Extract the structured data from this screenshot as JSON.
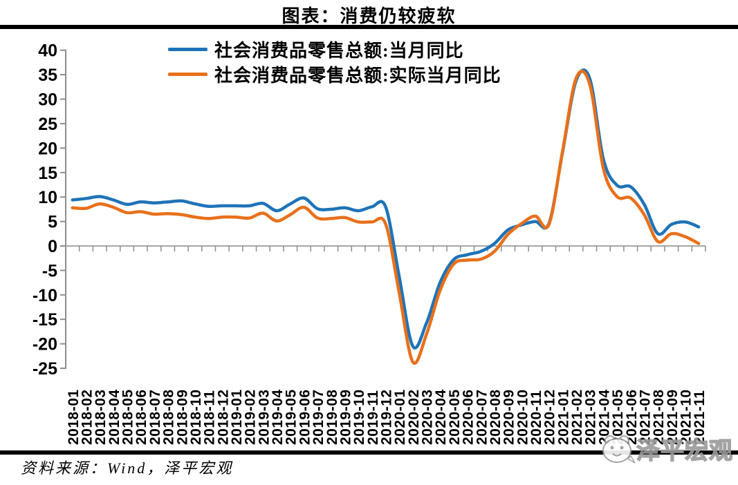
{
  "title": "图表：消费仍较疲软",
  "legend": [
    {
      "label": "社会消费品零售总额:当月同比",
      "color": "#1E73B8"
    },
    {
      "label": "社会消费品零售总额:实际当月同比",
      "color": "#E8701A"
    }
  ],
  "source_note": "资料来源：Wind，泽平宏观",
  "watermark_text": "泽平宏观",
  "colors": {
    "series_nominal": "#1E73B8",
    "series_real": "#E8701A",
    "axis": "#8C8C8C",
    "zero_line": "#A6A6A6",
    "rule": "#000000",
    "watermark": "#9A9A9A"
  },
  "chart_data": {
    "type": "line",
    "title": "图表：消费仍较疲软",
    "xlabel": "",
    "ylabel": "",
    "ylim": [
      -25,
      40
    ],
    "ytick_step": 5,
    "yticks": [
      40,
      35,
      30,
      25,
      20,
      15,
      10,
      5,
      0,
      -5,
      -10,
      -15,
      -20,
      -25
    ],
    "grid": "zero-axis-line-only",
    "legend_position": "top-center",
    "smooth": true,
    "categories": [
      "2018-01",
      "2018-02",
      "2018-03",
      "2018-04",
      "2018-05",
      "2018-06",
      "2018-07",
      "2018-08",
      "2018-09",
      "2018-10",
      "2018-11",
      "2018-12",
      "2019-01",
      "2019-02",
      "2019-03",
      "2019-04",
      "2019-05",
      "2019-06",
      "2019-07",
      "2019-08",
      "2019-09",
      "2019-10",
      "2019-11",
      "2019-12",
      "2020-01",
      "2020-02",
      "2020-03",
      "2020-04",
      "2020-05",
      "2020-06",
      "2020-07",
      "2020-08",
      "2020-09",
      "2020-10",
      "2020-11",
      "2020-12",
      "2021-01",
      "2021-02",
      "2021-03",
      "2021-04",
      "2021-05",
      "2021-06",
      "2021-07",
      "2021-08",
      "2021-09",
      "2021-10",
      "2021-11"
    ],
    "series": [
      {
        "name": "社会消费品零售总额:当月同比",
        "color": "#1E73B8",
        "values": [
          9.4,
          9.7,
          10.1,
          9.4,
          8.5,
          9.0,
          8.8,
          9.0,
          9.2,
          8.6,
          8.1,
          8.2,
          8.2,
          8.2,
          8.7,
          7.2,
          8.6,
          9.8,
          7.6,
          7.5,
          7.8,
          7.2,
          8.0,
          8.0,
          -6.3,
          -20.5,
          -15.8,
          -7.5,
          -2.8,
          -1.8,
          -1.1,
          0.5,
          3.3,
          4.3,
          5.0,
          4.6,
          19.2,
          33.8,
          34.2,
          17.7,
          12.4,
          12.1,
          8.5,
          2.5,
          4.4,
          4.9,
          3.9
        ]
      },
      {
        "name": "社会消费品零售总额:实际当月同比",
        "color": "#E8701A",
        "values": [
          7.8,
          7.7,
          8.6,
          7.9,
          6.8,
          7.0,
          6.5,
          6.6,
          6.4,
          5.9,
          5.6,
          5.9,
          5.9,
          5.7,
          6.7,
          5.1,
          6.4,
          7.9,
          5.7,
          5.6,
          5.8,
          4.9,
          4.9,
          4.5,
          -9.6,
          -23.7,
          -18.1,
          -9.1,
          -3.7,
          -2.9,
          -2.7,
          -1.1,
          2.4,
          4.6,
          6.1,
          4.4,
          19.4,
          34.3,
          33.0,
          15.8,
          10.1,
          9.8,
          6.4,
          0.9,
          2.5,
          1.9,
          0.5
        ]
      }
    ]
  }
}
